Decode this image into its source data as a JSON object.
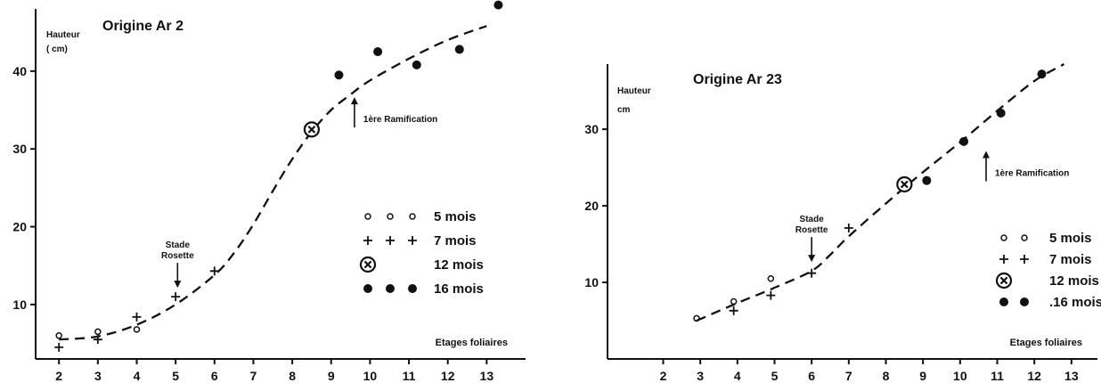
{
  "chart_data": [
    {
      "type": "scatter",
      "title": "Origine Ar 2",
      "ylabel": [
        "Hauteur",
        "( cm)"
      ],
      "xlabel": "Etages foliaires",
      "x_ticks": [
        "2",
        "3",
        "4",
        "5",
        "6",
        "7",
        "8",
        "9",
        "10",
        "11",
        "12",
        "13"
      ],
      "y_ticks": [
        "10",
        "20",
        "30",
        "40"
      ],
      "xlim": [
        1.4,
        14.0
      ],
      "ylim": [
        3,
        48
      ],
      "legend": {
        "placement": "right",
        "entries": [
          {
            "marker": "open-circle",
            "symbols": "o  o  o",
            "label": "5 mois"
          },
          {
            "marker": "plus",
            "symbols": "+  +  +",
            "label": "7 mois"
          },
          {
            "marker": "circled-x",
            "symbols": "⊗",
            "label": "12 mois"
          },
          {
            "marker": "filled-circle",
            "symbols": "●  ●",
            "label": "16 mois"
          }
        ]
      },
      "series": [
        {
          "name": "5 mois",
          "marker": "open-circle",
          "x": [
            2,
            3,
            4
          ],
          "y": [
            6.0,
            6.5,
            6.8
          ]
        },
        {
          "name": "7 mois",
          "marker": "plus",
          "x": [
            2,
            3,
            4,
            5,
            6
          ],
          "y": [
            4.5,
            5.5,
            8.4,
            11.0,
            14.3
          ]
        },
        {
          "name": "12 mois",
          "marker": "circled-x",
          "x": [
            8.5
          ],
          "y": [
            32.5
          ]
        },
        {
          "name": "16 mois",
          "marker": "filled-circle",
          "x": [
            9.2,
            10.2,
            11.2,
            12.3,
            13.3
          ],
          "y": [
            39.5,
            42.5,
            40.8,
            42.8,
            48.5
          ]
        }
      ],
      "trend": {
        "style": "dashed",
        "x": [
          2,
          3,
          4,
          5,
          6,
          6.5,
          7,
          7.5,
          8,
          8.5,
          9,
          9.5,
          10,
          11,
          12,
          13
        ],
        "y": [
          5.5,
          5.9,
          7.4,
          10.0,
          13.8,
          16.6,
          20.3,
          24.6,
          28.7,
          32.2,
          35.0,
          37.0,
          38.8,
          41.6,
          44.0,
          45.8
        ]
      },
      "annotations": [
        {
          "text": [
            "Stade",
            "Rosette"
          ],
          "arrow": "down",
          "at_x": 5.05,
          "at_y": 11.0
        },
        {
          "text": "1ère Ramification",
          "arrow": "up",
          "at_x": 9.6,
          "at_y": 35.5
        }
      ]
    },
    {
      "type": "scatter",
      "title": "Origine Ar 23",
      "ylabel": [
        "Hauteur",
        "cm"
      ],
      "xlabel": "Etages foliaires",
      "x_ticks": [
        "2",
        "3",
        "4",
        "5",
        "6",
        "7",
        "8",
        "9",
        "10",
        "11",
        "12",
        "13"
      ],
      "y_ticks": [
        "10",
        "20",
        "30"
      ],
      "xlim": [
        0.5,
        13.7
      ],
      "ylim": [
        0,
        38.5
      ],
      "legend": {
        "placement": "right",
        "entries": [
          {
            "marker": "open-circle",
            "symbols": "o  o",
            "label": "5 mois"
          },
          {
            "marker": "plus",
            "symbols": "+  +",
            "label": "7 mois"
          },
          {
            "marker": "circled-x",
            "symbols": "⊗",
            "label": "12 mois"
          },
          {
            "marker": "filled-circle",
            "symbols": "●  ●",
            "label": ".16 mois"
          }
        ]
      },
      "series": [
        {
          "name": "5 mois",
          "marker": "open-circle",
          "x": [
            2.9,
            3.9,
            4.9
          ],
          "y": [
            5.3,
            7.5,
            10.5
          ]
        },
        {
          "name": "7 mois",
          "marker": "plus",
          "x": [
            3.9,
            4.9,
            6.0,
            7.0
          ],
          "y": [
            6.3,
            8.3,
            11.2,
            17.1
          ]
        },
        {
          "name": "12 mois",
          "marker": "circled-x",
          "x": [
            8.5
          ],
          "y": [
            22.8
          ]
        },
        {
          "name": "16 mois",
          "marker": "filled-circle",
          "x": [
            9.1,
            10.1,
            11.1,
            12.2
          ],
          "y": [
            23.3,
            28.4,
            32.1,
            37.2
          ]
        }
      ],
      "trend": {
        "style": "dashed",
        "x": [
          2.9,
          4.0,
          5.0,
          6.0,
          6.5,
          7.0,
          8.0,
          9.0,
          10.0,
          11.0,
          12.0,
          12.8
        ],
        "y": [
          5.0,
          7.3,
          9.3,
          11.5,
          13.6,
          16.0,
          20.3,
          24.4,
          28.3,
          32.4,
          36.3,
          38.5
        ]
      },
      "annotations": [
        {
          "text": [
            "Stade",
            "Rosette"
          ],
          "arrow": "down",
          "at_x": 6.0,
          "at_y": 11.5
        },
        {
          "text": "1ère Ramification",
          "arrow": "up",
          "at_x": 10.7,
          "at_y": 26.0
        }
      ]
    }
  ]
}
